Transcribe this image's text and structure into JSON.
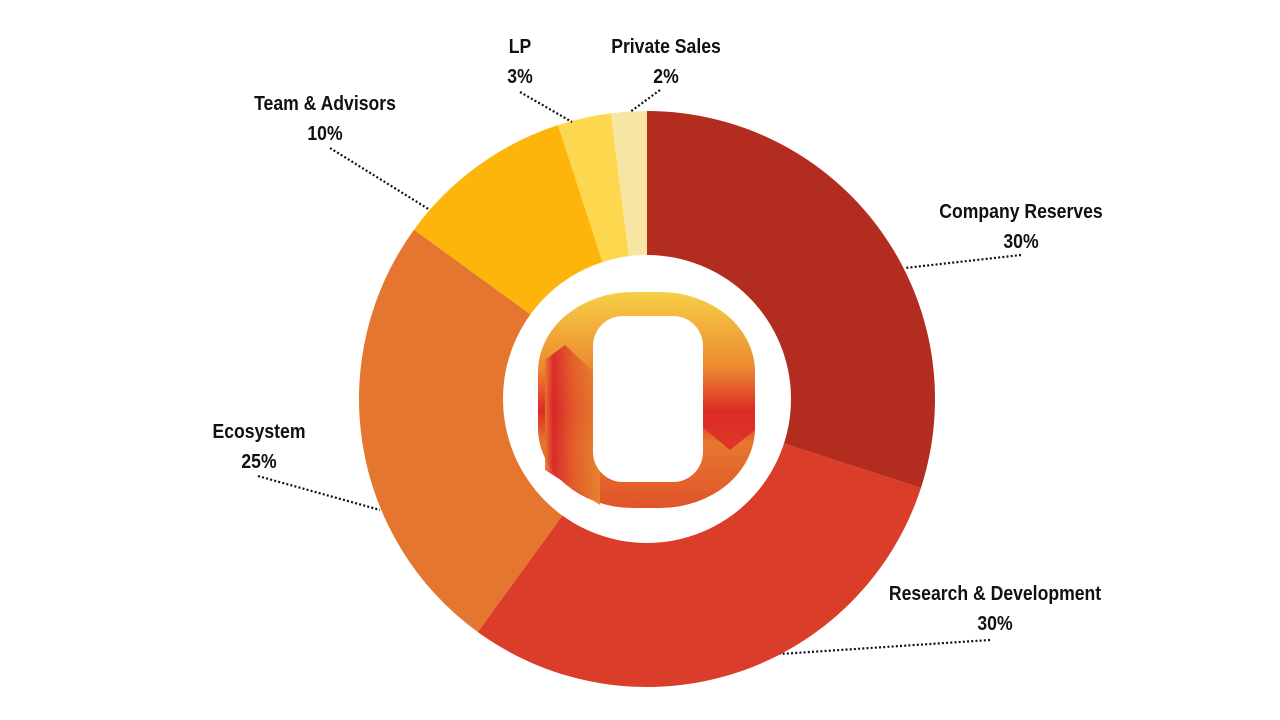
{
  "chart_data": {
    "type": "pie",
    "subtype": "donut",
    "title": "",
    "start": "top",
    "direction": "clockwise",
    "slices": [
      {
        "label": "Company Reserves",
        "value": 30,
        "display": "30%",
        "color": "#B22D20"
      },
      {
        "label": "Research & Development",
        "value": 30,
        "display": "30%",
        "color": "#DA3D2A"
      },
      {
        "label": "Ecosystem",
        "value": 25,
        "display": "25%",
        "color": "#E4762F"
      },
      {
        "label": "Team & Advisors",
        "value": 10,
        "display": "10%",
        "color": "#FDB40B"
      },
      {
        "label": "LP",
        "value": 3,
        "display": "3%",
        "color": "#FDD84E"
      },
      {
        "label": "Private Sales",
        "value": 2,
        "display": "2%",
        "color": "#F7E5A4"
      }
    ]
  }
}
